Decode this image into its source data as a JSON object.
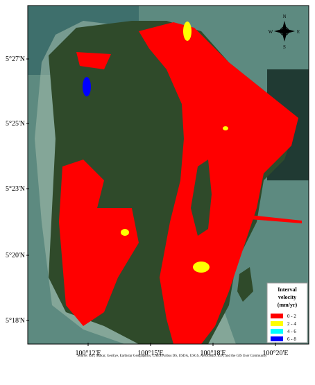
{
  "map": {
    "lat_labels": [
      "5°27'N",
      "5°25'N",
      "5°23'N",
      "5°20'N",
      "5°18'N"
    ],
    "lon_labels": [
      "100°12'E",
      "100°15'E",
      "100°18'E",
      "100°20'E"
    ],
    "compass": {
      "n": "N",
      "s": "S",
      "e": "E",
      "w": "W"
    },
    "legend": {
      "title": "Interval velocity (mm/yr)",
      "items": [
        {
          "label": "0 - 2",
          "color": "#ff0000"
        },
        {
          "label": "2 - 4",
          "color": "#ffff00"
        },
        {
          "label": "4 - 6",
          "color": "#00ffff"
        },
        {
          "label": "6 - 8",
          "color": "#0000ff"
        }
      ]
    },
    "attribution": "Source: Esri, Maxar, GeoEye, Earthstar Geographics, CNES/Airbus DS, USDA, USGS, AeroGRID, IGN, and the GIS User Community"
  }
}
